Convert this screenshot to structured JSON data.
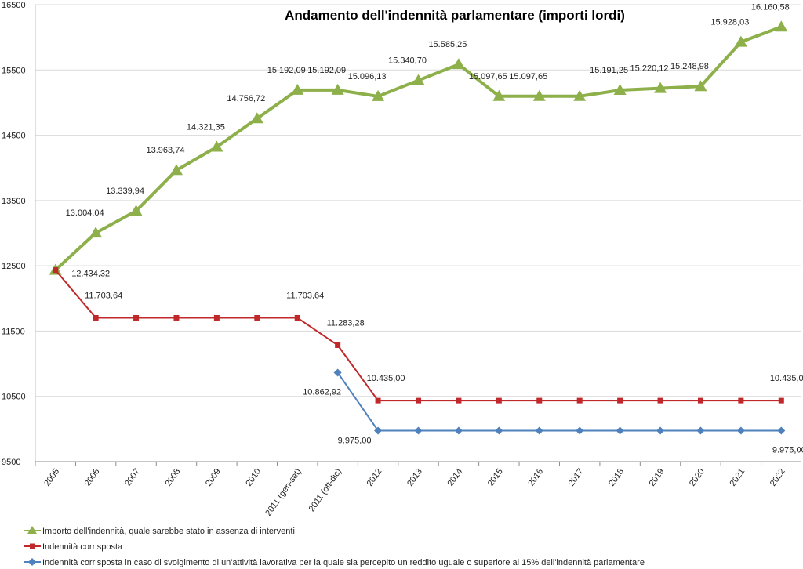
{
  "chart_data": {
    "type": "line",
    "title": "Andamento dell'indennità parlamentare (importi lordi)",
    "xlabel": "",
    "ylabel": "",
    "ylim": [
      9500,
      16500
    ],
    "yticks": [
      9500,
      10500,
      11500,
      12500,
      13500,
      14500,
      15500,
      16500
    ],
    "grid": true,
    "legend_position": "bottom-left",
    "categories": [
      "2005",
      "2006",
      "2007",
      "2008",
      "2009",
      "2010",
      "2011 (gen-set)",
      "2011 (ott-dic)",
      "2012",
      "2013",
      "2014",
      "2015",
      "2016",
      "2017",
      "2018",
      "2019",
      "2020",
      "2021",
      "2022"
    ],
    "series": [
      {
        "name": "Importo dell'indennità, quale sarebbe stato in assenza di interventi",
        "color": "#8db04a",
        "marker": "triangle",
        "values": [
          12434.32,
          13004.04,
          13339.94,
          13963.74,
          14321.35,
          14756.72,
          15192.09,
          15192.09,
          15096.13,
          15340.7,
          15585.25,
          15097.65,
          15097.65,
          15097.65,
          15191.25,
          15220.12,
          15248.98,
          15928.03,
          16160.58
        ],
        "labels": [
          null,
          "13.004,04",
          "13.339,94",
          "13.963,74",
          "14.321,35",
          "14.756,72",
          "15.192,09",
          "15.192,09",
          "15.096,13",
          "15.340,70",
          "15.585,25",
          "15.097,65",
          "15.097,65",
          null,
          "15.191,25",
          "15.220,12",
          "15.248,98",
          "15.928,03",
          "16.160,58"
        ]
      },
      {
        "name": "Indennità corrisposta",
        "color": "#c0282a",
        "marker": "x-square",
        "values": [
          12434.32,
          11703.64,
          11703.64,
          11703.64,
          11703.64,
          11703.64,
          11703.64,
          11283.28,
          10435.0,
          10435.0,
          10435.0,
          10435.0,
          10435.0,
          10435.0,
          10435.0,
          10435.0,
          10435.0,
          10435.0,
          10435.0
        ],
        "labels": [
          "12.434,32",
          "11.703,64",
          null,
          null,
          null,
          null,
          "11.703,64",
          "11.283,28",
          "10.435,00",
          null,
          null,
          null,
          null,
          null,
          null,
          null,
          null,
          null,
          "10.435,00"
        ]
      },
      {
        "name": "Indennità corrisposta  in caso di svolgimento di un'attività lavorativa per la quale sia percepito un reddito uguale o superiore al 15% dell'indennità parlamentare",
        "color": "#4f81bd",
        "marker": "diamond",
        "values": [
          null,
          null,
          null,
          null,
          null,
          null,
          null,
          10862.92,
          9975.0,
          9975.0,
          9975.0,
          9975.0,
          9975.0,
          9975.0,
          9975.0,
          9975.0,
          9975.0,
          9975.0,
          9975.0
        ],
        "labels": [
          null,
          null,
          null,
          null,
          null,
          null,
          null,
          "10.862,92",
          "9.975,00",
          null,
          null,
          null,
          null,
          null,
          null,
          null,
          null,
          null,
          "9.975,00"
        ]
      }
    ]
  }
}
